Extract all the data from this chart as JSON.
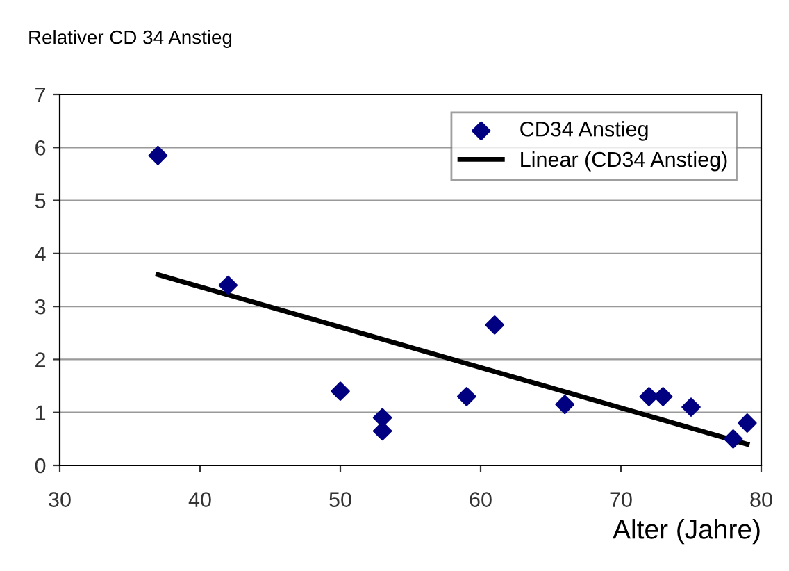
{
  "chart_data": {
    "type": "scatter",
    "title": "Relativer CD 34 Anstieg",
    "xlabel": "Alter (Jahre)",
    "x": [
      37,
      42,
      50,
      53,
      53,
      59,
      61,
      66,
      72,
      73,
      75,
      78,
      79
    ],
    "series": [
      {
        "name": "CD34 Anstieg",
        "color": "#000080",
        "marker": "diamond",
        "values": [
          5.85,
          3.4,
          1.4,
          0.9,
          0.65,
          1.3,
          2.65,
          1.15,
          1.3,
          1.3,
          1.1,
          0.5,
          0.8
        ]
      },
      {
        "name": "Linear (CD34 Anstieg)",
        "color": "#000000",
        "type": "line",
        "line_style": "solid",
        "x": [
          37,
          79
        ],
        "values": [
          3.6,
          0.4
        ]
      }
    ],
    "xlim": [
      30,
      80
    ],
    "xticks": [
      30,
      40,
      50,
      60,
      70,
      80
    ],
    "ylim": [
      0,
      7
    ],
    "yticks": [
      0,
      1,
      2,
      3,
      4,
      5,
      6,
      7
    ],
    "grid": "y",
    "legend": "top right"
  }
}
